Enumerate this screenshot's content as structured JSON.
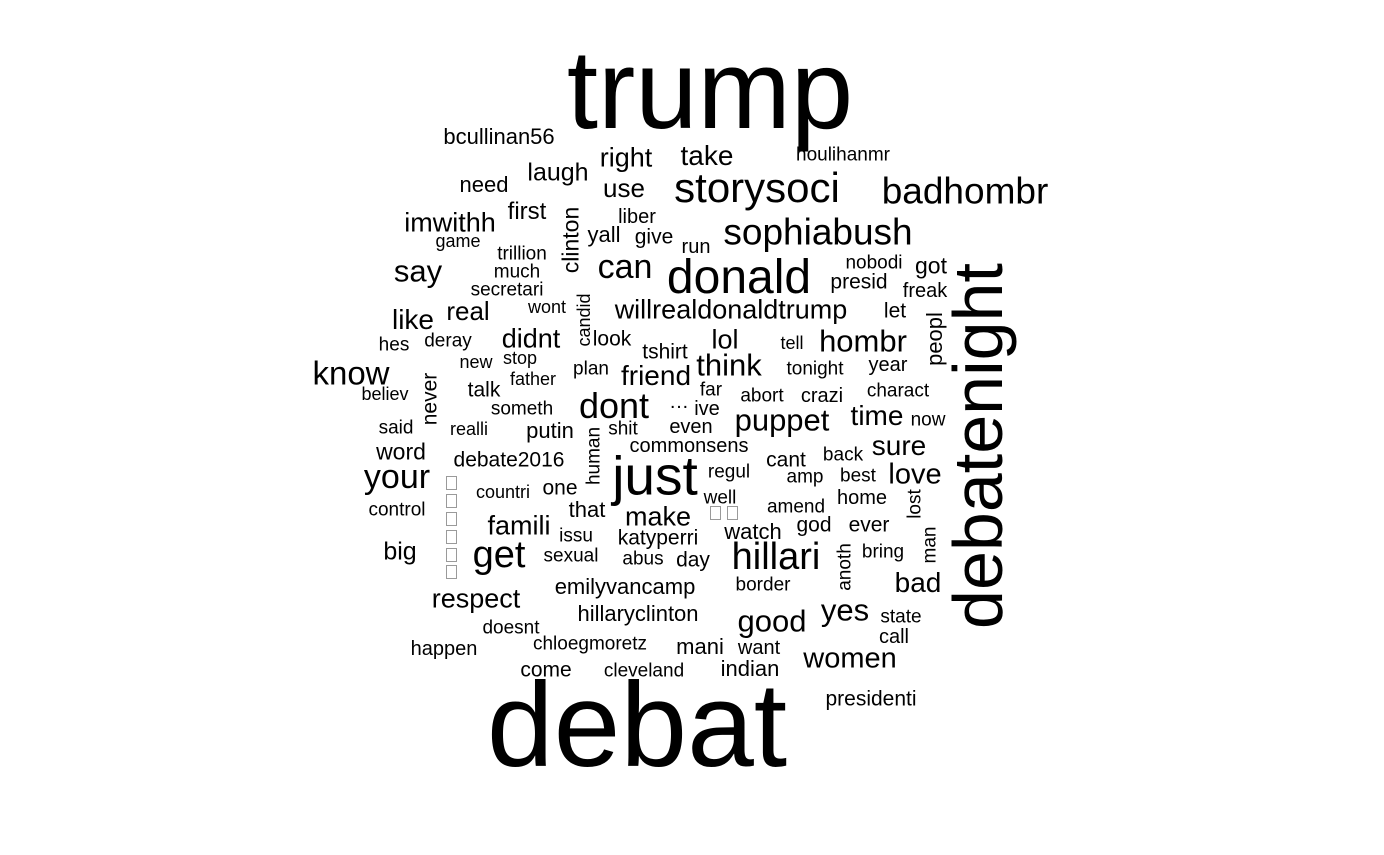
{
  "word_cloud": {
    "text_color": "#000000",
    "background": "#ffffff",
    "words": [
      "trump",
      "debat",
      "debatenight",
      "storysoci",
      "donald",
      "badhombr",
      "sophiabush",
      "just",
      "hillari",
      "willrealdonaldtrump",
      "hombr",
      "puppet",
      "dont",
      "get",
      "know",
      "your",
      "good",
      "women",
      "yes",
      "can",
      "say",
      "think",
      "friend",
      "respect",
      "famili",
      "make",
      "love",
      "sure",
      "time",
      "bad",
      "didnt",
      "lol",
      "real",
      "like",
      "imwithh",
      "right",
      "take",
      "laugh",
      "use",
      "first",
      "need",
      "bcullinan56",
      "houlihanmr",
      "clinton",
      "liber",
      "yall",
      "give",
      "run",
      "game",
      "trillion",
      "much",
      "secretari",
      "wont",
      "candid",
      "nobodi",
      "got",
      "presid",
      "freak",
      "let",
      "peopl",
      "look",
      "tshirt",
      "tell",
      "hes",
      "deray",
      "new",
      "stop",
      "father",
      "plan",
      "tonight",
      "year",
      "talk",
      "never",
      "believ",
      "far",
      "abort",
      "crazi",
      "charact",
      "someth",
      "…",
      "ive",
      "said",
      "realli",
      "putin",
      "shit",
      "even",
      "now",
      "human",
      "commonsens",
      "word",
      "debate2016",
      "regul",
      "cant",
      "back",
      "amp",
      "best",
      "countri",
      "one",
      "well",
      "home",
      "lost",
      "control",
      "that",
      "amend",
      "issu",
      "watch",
      "god",
      "ever",
      "man",
      "big",
      "katyperri",
      "sexual",
      "abus",
      "day",
      "anoth",
      "bring",
      "emilyvancamp",
      "border",
      "hillaryclinton",
      "state",
      "doesnt",
      "call",
      "happen",
      "chloegmoretz",
      "mani",
      "want",
      "come",
      "cleveland",
      "indian",
      "presidenti"
    ]
  }
}
